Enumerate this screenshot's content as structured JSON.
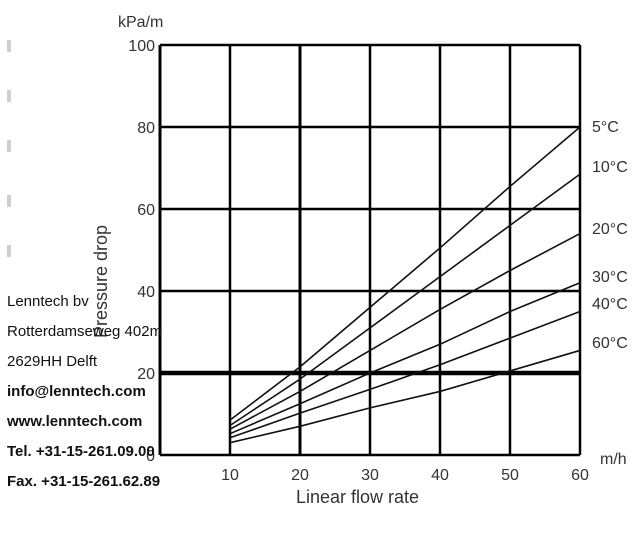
{
  "chart_data": {
    "type": "line",
    "x": [
      10,
      20,
      30,
      40,
      50,
      60
    ],
    "xlim": [
      10,
      60
    ],
    "ylim": [
      0,
      100
    ],
    "y_ticks": [
      100,
      80,
      60,
      40,
      20,
      0
    ],
    "x_ticks": [
      10,
      20,
      30,
      40,
      50,
      60
    ],
    "ylabel": "Pressure drop",
    "xlabel": "Linear flow rate",
    "y_unit": "kPa/m",
    "x_unit": "m/h",
    "grid": true,
    "series": [
      {
        "name": "5°C",
        "values": [
          8.5,
          21.5,
          36,
          50.5,
          65.5,
          80
        ]
      },
      {
        "name": "10°C",
        "values": [
          7.2,
          18.5,
          31,
          43.5,
          56,
          68.5
        ]
      },
      {
        "name": "20°C",
        "values": [
          6.3,
          15.5,
          25.5,
          35.5,
          45,
          54
        ]
      },
      {
        "name": "30°C",
        "values": [
          5.2,
          12.5,
          20,
          27,
          35,
          42
        ]
      },
      {
        "name": "40°C",
        "values": [
          4.2,
          10.2,
          16,
          22,
          28.5,
          35
        ]
      },
      {
        "name": "60°C",
        "values": [
          3,
          7,
          11.5,
          15.5,
          20.5,
          25.5
        ]
      }
    ]
  },
  "contact": {
    "company": "Lenntech bv",
    "street": "Rotterdamseweg 402m",
    "city": "2629HH Delft",
    "email": "info@lenntech.com",
    "web": "www.lenntech.com",
    "tel": "Tel.  +31-15-261.09.00",
    "fax": "Fax. +31-15-261.62.89"
  }
}
